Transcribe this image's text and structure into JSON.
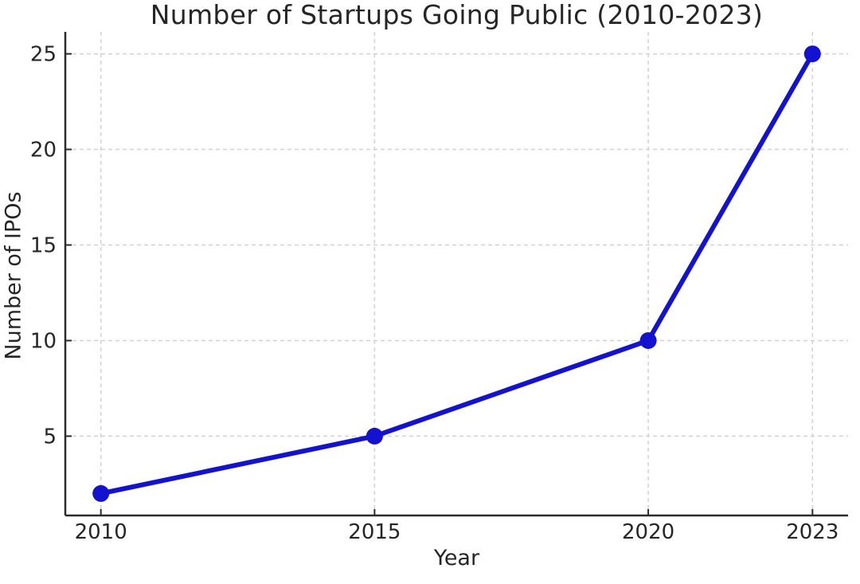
{
  "chart_data": {
    "type": "line",
    "title": "Number of Startups Going Public (2010-2023)",
    "xlabel": "Year",
    "ylabel": "Number of IPOs",
    "x": [
      2010,
      2015,
      2020,
      2023
    ],
    "y": [
      2,
      5,
      10,
      25
    ],
    "series": [
      {
        "name": "Number of IPOs",
        "x": [
          2010,
          2015,
          2020,
          2023
        ],
        "values": [
          2,
          5,
          10,
          25
        ]
      }
    ],
    "xticks": [
      2010,
      2015,
      2020,
      2023
    ],
    "yticks": [
      5,
      10,
      15,
      20,
      25
    ],
    "xlim": [
      2009.35,
      2023.65
    ],
    "ylim": [
      0.85,
      26.15
    ],
    "grid": true,
    "grid_style": "dashed",
    "legend": "none",
    "line_color": "#1212d0",
    "marker": "circle",
    "marker_color": "#1212d0",
    "grid_color": "#d2d2d2",
    "axis_color": "#2b2b2b",
    "text_color": "#262626",
    "background_color": "#ffffff"
  }
}
